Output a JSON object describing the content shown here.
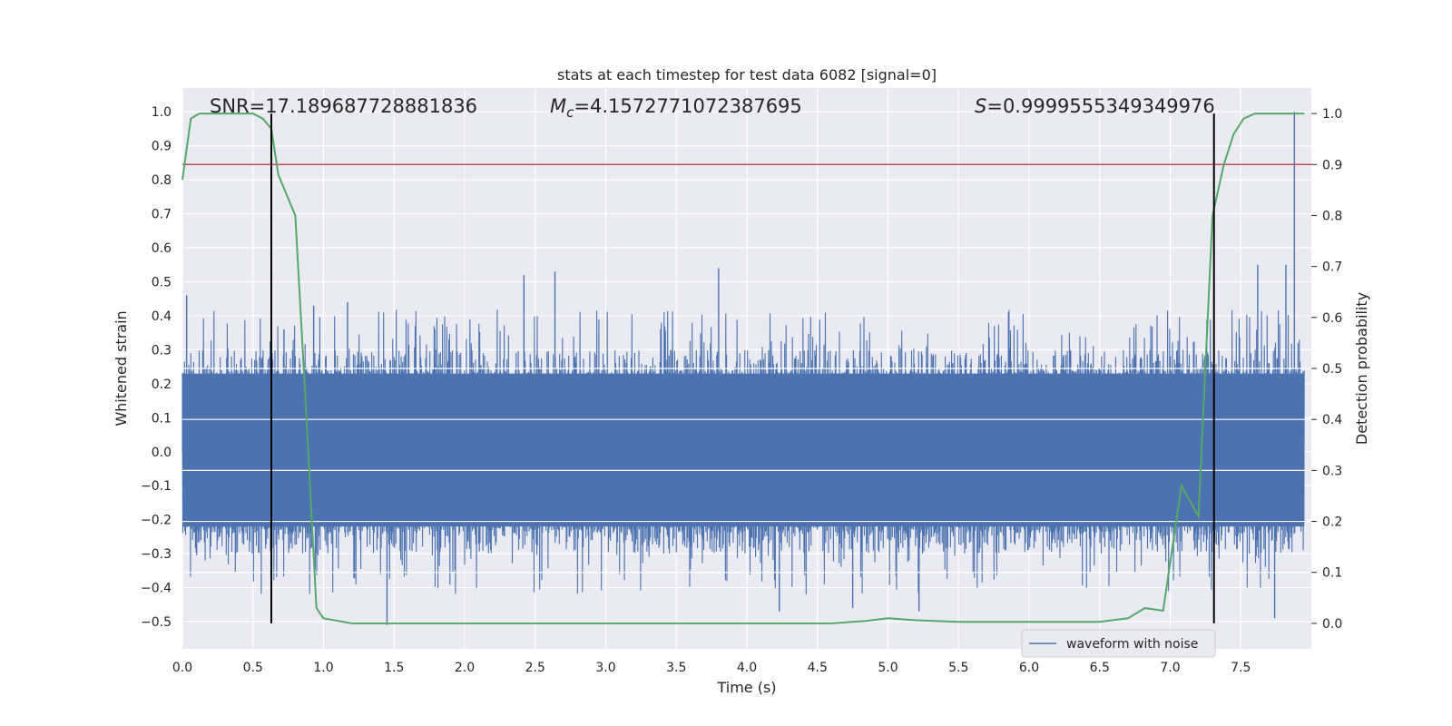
{
  "chart_data": {
    "type": "line",
    "title": "stats at each timestep for test data 6082 [signal=0]",
    "xlabel": "Time (s)",
    "ylabel_left": "Whitened strain",
    "ylabel_right": "Detection probability",
    "xlim": [
      0.0,
      8.0
    ],
    "ylim_left": [
      -0.58,
      1.07
    ],
    "ylim_right": [
      -0.05,
      1.05
    ],
    "x_ticks": [
      "0.0",
      "0.5",
      "1.0",
      "1.5",
      "2.0",
      "2.5",
      "3.0",
      "3.5",
      "4.0",
      "4.5",
      "5.0",
      "5.5",
      "6.0",
      "6.5",
      "7.0",
      "7.5"
    ],
    "y_ticks_left": [
      "1.0",
      "0.9",
      "0.8",
      "0.7",
      "0.6",
      "0.5",
      "0.4",
      "0.3",
      "0.2",
      "0.1",
      "0.0",
      "−0.1",
      "−0.2",
      "−0.3",
      "−0.4",
      "−0.5"
    ],
    "y_ticks_right": [
      "1.0",
      "0.9",
      "0.8",
      "0.7",
      "0.6",
      "0.5",
      "0.4",
      "0.3",
      "0.2",
      "0.1",
      "0.0"
    ],
    "grid": true,
    "annotations": {
      "snr": "SNR=17.189687728881836",
      "mc_symbol": "M",
      "mc_sub": "c",
      "mc_value": "=4.1572771072387695",
      "s_symbol": "S",
      "s_value": "=0.9999555349349976"
    },
    "legend": {
      "position": "lower-right",
      "entries": [
        "waveform with noise"
      ]
    },
    "waveform": {
      "name": "waveform with noise",
      "color": "#4c72b0",
      "band_upper": 0.23,
      "band_lower": -0.22,
      "extreme_peaks": [
        {
          "x": 0.03,
          "y": 0.46
        },
        {
          "x": 0.72,
          "y": 0.36
        },
        {
          "x": 0.93,
          "y": 0.43
        },
        {
          "x": 1.17,
          "y": 0.44
        },
        {
          "x": 1.45,
          "y": -0.51
        },
        {
          "x": 2.42,
          "y": 0.52
        },
        {
          "x": 2.64,
          "y": 0.53
        },
        {
          "x": 3.8,
          "y": 0.54
        },
        {
          "x": 4.23,
          "y": -0.47
        },
        {
          "x": 4.75,
          "y": -0.46
        },
        {
          "x": 5.22,
          "y": -0.47
        },
        {
          "x": 7.62,
          "y": 0.55
        },
        {
          "x": 7.82,
          "y": 0.55
        },
        {
          "x": 7.88,
          "y": 1.0
        },
        {
          "x": 7.74,
          "y": -0.49
        }
      ]
    },
    "probability": {
      "color": "#55a868",
      "x": [
        0.0,
        0.06,
        0.12,
        0.3,
        0.5,
        0.57,
        0.63,
        0.68,
        0.8,
        0.88,
        0.95,
        1.0,
        1.2,
        1.5,
        2.0,
        3.0,
        4.0,
        4.6,
        4.85,
        5.0,
        5.2,
        5.5,
        6.0,
        6.5,
        6.7,
        6.82,
        6.95,
        7.08,
        7.2,
        7.3,
        7.38,
        7.45,
        7.52,
        7.6,
        7.75,
        7.95
      ],
      "y": [
        0.87,
        0.99,
        1.0,
        1.0,
        1.0,
        0.99,
        0.97,
        0.88,
        0.8,
        0.4,
        0.03,
        0.01,
        0.0,
        0.0,
        0.0,
        0.0,
        0.0,
        0.0,
        0.005,
        0.01,
        0.006,
        0.003,
        0.003,
        0.003,
        0.01,
        0.03,
        0.025,
        0.27,
        0.21,
        0.8,
        0.9,
        0.96,
        0.99,
        1.0,
        1.0,
        1.0
      ]
    },
    "threshold": {
      "color": "#c44e52",
      "value": 0.9
    },
    "markers": {
      "color": "#000000",
      "x": [
        0.63,
        7.31
      ]
    }
  }
}
